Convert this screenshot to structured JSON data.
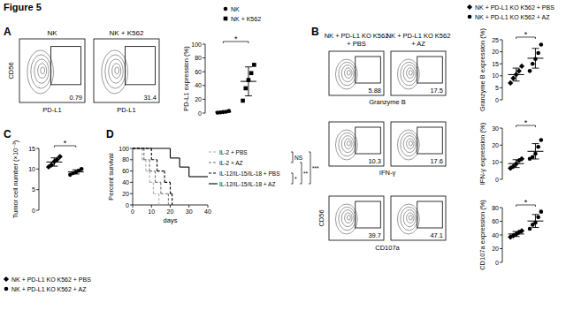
{
  "title": "Figure 5",
  "chart_data": [
    {
      "type": "flow",
      "panel": "A",
      "title": "NK",
      "x_label": "PD-L1",
      "y_label": "CD56",
      "gate_value": 0.79
    },
    {
      "type": "flow",
      "title": "NK + K562",
      "x_label": "PD-L1",
      "gate_value": 31.4
    },
    {
      "type": "dot",
      "y_label": "PD-L1 expression (%)",
      "ylim": [
        0,
        100
      ],
      "yticks": [
        0,
        20,
        40,
        60,
        80,
        100
      ],
      "legend": "top",
      "annotations": [
        "*"
      ],
      "series": [
        {
          "name": "NK",
          "marker": "circle",
          "color": "#000000",
          "values": [
            0.5,
            1,
            1.5,
            2,
            3
          ],
          "mean": 1.6,
          "error": 1
        },
        {
          "name": "NK + K562",
          "marker": "square",
          "color": "#000000",
          "values": [
            18,
            36,
            48,
            58,
            70
          ],
          "mean": 46,
          "error": 21
        }
      ]
    },
    {
      "type": "flow",
      "panel": "B",
      "title": "NK + PD-L1 KO K562 + PBS",
      "gate_value": 5.88
    },
    {
      "type": "flow",
      "title": "NK + PD-L1 KO K562 + AZ",
      "x_label": "Granzyme B",
      "gate_value": 17.5
    },
    {
      "type": "flow",
      "gate_value": 10.3
    },
    {
      "type": "flow",
      "x_label": "IFN-γ",
      "gate_value": 17.6
    },
    {
      "type": "flow",
      "y_label": "CD56",
      "gate_value": 39.7
    },
    {
      "type": "flow",
      "x_label": "CD107a",
      "gate_value": 47.1
    },
    {
      "type": "dot",
      "y_label": "Granzyme B expression (%)",
      "ylim": [
        0,
        25
      ],
      "yticks": [
        0,
        5,
        10,
        15,
        20,
        25
      ],
      "legend": "top",
      "annotations": [
        "*"
      ],
      "series": [
        {
          "name": "NK + PD-L1 KO K562 + PBS",
          "marker": "diamond",
          "color": "#000000",
          "values": [
            7,
            9,
            10.5,
            12,
            14
          ],
          "mean": 10.5,
          "error": 2.7
        },
        {
          "name": "NK + PD-L1 KO K562 + AZ",
          "marker": "circle",
          "color": "#000000",
          "values": [
            12,
            15,
            17,
            19.5,
            23
          ],
          "mean": 17.3,
          "error": 4.1
        }
      ]
    },
    {
      "type": "dot",
      "y_label": "IFN-γ expression (%)",
      "ylim": [
        0,
        30
      ],
      "yticks": [
        0,
        10,
        20,
        30
      ],
      "annotations": [
        "*"
      ],
      "series": [
        {
          "marker": "diamond",
          "color": "#000000",
          "values": [
            6.5,
            7.5,
            9,
            11,
            12
          ],
          "mean": 9.2,
          "error": 2.3
        },
        {
          "marker": "circle",
          "color": "#000000",
          "values": [
            12,
            13,
            15,
            19,
            23
          ],
          "mean": 16.4,
          "error": 4.5
        }
      ]
    },
    {
      "type": "dot",
      "y_label": "CD107a expression (%)",
      "ylim": [
        0,
        80
      ],
      "yticks": [
        0,
        20,
        40,
        60,
        80
      ],
      "annotations": [
        "*"
      ],
      "series": [
        {
          "marker": "diamond",
          "color": "#000000",
          "values": [
            37,
            39,
            41,
            44,
            46
          ],
          "mean": 41.4,
          "error": 3.6
        },
        {
          "marker": "circle",
          "color": "#000000",
          "values": [
            49,
            55,
            58,
            66,
            74
          ],
          "mean": 60.4,
          "error": 9.5
        }
      ]
    },
    {
      "type": "dot",
      "panel": "C",
      "y_label": "Tumor cell number (×10⁻³)",
      "ylim": [
        0,
        15
      ],
      "yticks": [
        0,
        5,
        10,
        15
      ],
      "legend": "bottom",
      "annotations": [
        "*"
      ],
      "series": [
        {
          "name": "NK + PD-L1 KO K562 + PBS",
          "marker": "diamond",
          "color": "#000000",
          "values": [
            10.5,
            11,
            11.8,
            12.3,
            13
          ],
          "mean": 11.7,
          "error": 1
        },
        {
          "name": "NK + PD-L1 KO K562 + AZ",
          "marker": "circle",
          "color": "#000000",
          "values": [
            8.6,
            9,
            9.2,
            9.6,
            10
          ],
          "mean": 9.3,
          "error": 0.5
        }
      ]
    },
    {
      "type": "line",
      "panel": "D",
      "x_label": "days",
      "y_label": "Percent survival",
      "xlim": [
        0,
        40
      ],
      "xticks": [
        0,
        10,
        20,
        30,
        40
      ],
      "ylim": [
        0,
        100
      ],
      "yticks": [
        0,
        20,
        40,
        60,
        80,
        100
      ],
      "legend": "right",
      "annotations": [
        "NS",
        "*",
        "**",
        "***"
      ],
      "series": [
        {
          "name": "IL-2 + PBS",
          "color": "#b0b0b0",
          "line_style": "dashed",
          "x": [
            0,
            5,
            7,
            9,
            11,
            14
          ],
          "values": [
            100,
            80,
            60,
            40,
            20,
            0
          ]
        },
        {
          "name": "IL-2 + AZ",
          "color": "#707070",
          "line_style": "dashed",
          "x": [
            0,
            6,
            9,
            12,
            15,
            19
          ],
          "values": [
            100,
            80,
            60,
            40,
            20,
            0
          ]
        },
        {
          "name": "IL-12/IL-15/IL-18 + PBS",
          "color": "#000000",
          "line_style": "dashed",
          "x": [
            0,
            10,
            13,
            17,
            20,
            21
          ],
          "values": [
            100,
            80,
            60,
            40,
            20,
            0
          ]
        },
        {
          "name": "IL-12/IL-15/IL-18 + AZ",
          "color": "#000000",
          "line_style": "solid",
          "x": [
            0,
            20,
            25,
            30,
            40
          ],
          "values": [
            100,
            83,
            67,
            50,
            50
          ]
        }
      ]
    }
  ]
}
